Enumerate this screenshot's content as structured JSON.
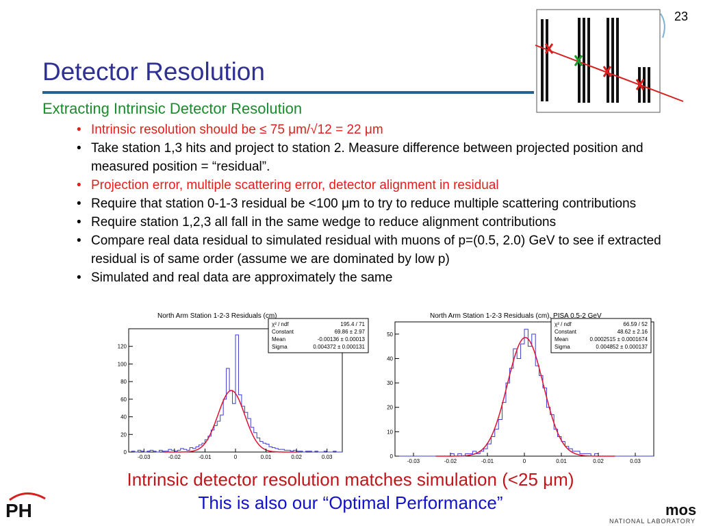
{
  "slide_number": "23",
  "title": "Detector Resolution",
  "subtitle": "Extracting Intrinsic Detector Resolution",
  "bullets": [
    {
      "text": "Intrinsic resolution should be ≤ 75 μm/√12 = 22 μm",
      "color": "#e0201a"
    },
    {
      "text": "Take station 1,3 hits and project to station 2.  Measure difference between projected position and measured position = “residual”.",
      "color": "#000000"
    },
    {
      "text": "Projection error, multiple scattering error, detector alignment in residual",
      "color": "#e0201a"
    },
    {
      "text": "Require that station 0-1-3 residual be <100 μm to try to reduce multiple scattering contributions",
      "color": "#000000"
    },
    {
      "text": "Require station 1,2,3 all fall in the same wedge to reduce alignment contributions",
      "color": "#000000"
    },
    {
      "text": "Compare real data residual to simulated residual with muons of p=(0.5, 2.0) GeV to see if extracted residual is of same order (assume we are dominated by low p)",
      "color": "#000000"
    },
    {
      "text": "Simulated and real data are approximately the same",
      "color": "#000000"
    }
  ],
  "conclusion": {
    "line1": "Intrinsic detector resolution matches simulation (<25 μm)",
    "line2": "This is also our “Optimal Performance”"
  },
  "logos": {
    "left": "PH",
    "right_main": "mos",
    "right_sub": "NATIONAL LABORATORY"
  },
  "chart_data": [
    {
      "type": "bar",
      "title": "North Arm Station 1-2-3 Residuals (cm)",
      "xlim": [
        -0.035,
        0.035
      ],
      "ylim": [
        0,
        140
      ],
      "xticks": [
        "-0.03",
        "-0.02",
        "-0.01",
        "0",
        "0.01",
        "0.02",
        "0.03"
      ],
      "yticks": [
        "0",
        "20",
        "40",
        "60",
        "80",
        "100",
        "120"
      ],
      "stats": [
        {
          "label": "χ² / ndf",
          "value": "195.4 / 71"
        },
        {
          "label": "Constant",
          "value": "69.86 ± 2.97"
        },
        {
          "label": "Mean",
          "value": "-0.00136 ± 0.00013"
        },
        {
          "label": "Sigma",
          "value": "0.004372 ± 0.000131"
        }
      ],
      "fit": {
        "constant": 69.86,
        "mean": -0.00136,
        "sigma": 0.004372
      },
      "bin_width": 0.001,
      "bins_x": [
        -0.035,
        -0.034,
        -0.033,
        -0.032,
        -0.031,
        -0.03,
        -0.029,
        -0.028,
        -0.027,
        -0.026,
        -0.025,
        -0.024,
        -0.023,
        -0.022,
        -0.021,
        -0.02,
        -0.019,
        -0.018,
        -0.017,
        -0.016,
        -0.015,
        -0.014,
        -0.013,
        -0.012,
        -0.011,
        -0.01,
        -0.009,
        -0.008,
        -0.007,
        -0.006,
        -0.005,
        -0.004,
        -0.003,
        -0.002,
        -0.001,
        0.0,
        0.001,
        0.002,
        0.003,
        0.004,
        0.005,
        0.006,
        0.007,
        0.008,
        0.009,
        0.01,
        0.011,
        0.012,
        0.013,
        0.014,
        0.015,
        0.016,
        0.017,
        0.018,
        0.019,
        0.02,
        0.021,
        0.022,
        0.023,
        0.024,
        0.025,
        0.026,
        0.027,
        0.028,
        0.029,
        0.03,
        0.031,
        0.032,
        0.033,
        0.034
      ],
      "bins_y": [
        0,
        1,
        0,
        2,
        1,
        0,
        1,
        2,
        1,
        0,
        2,
        1,
        1,
        3,
        2,
        1,
        2,
        4,
        3,
        2,
        5,
        4,
        6,
        8,
        10,
        14,
        18,
        25,
        30,
        35,
        42,
        60,
        95,
        70,
        55,
        133,
        65,
        52,
        45,
        38,
        28,
        22,
        16,
        12,
        10,
        9,
        6,
        5,
        4,
        3,
        3,
        2,
        2,
        1,
        2,
        1,
        1,
        0,
        1,
        1,
        0,
        1,
        0,
        0,
        1,
        0,
        0,
        1,
        0,
        0
      ]
    },
    {
      "type": "bar",
      "title": "North Arm Station 1-2-3 Residuals (cm), PISA 0.5-2 GeV",
      "xlim": [
        -0.035,
        0.035
      ],
      "ylim": [
        0,
        55
      ],
      "xticks": [
        "-0.03",
        "-0.02",
        "-0.01",
        "0",
        "0.01",
        "0.02",
        "0.03"
      ],
      "yticks": [
        "0",
        "10",
        "20",
        "30",
        "40",
        "50"
      ],
      "stats": [
        {
          "label": "χ² / ndf",
          "value": "66.59 / 52"
        },
        {
          "label": "Constant",
          "value": "48.62 ± 2.16"
        },
        {
          "label": "Mean",
          "value": "0.0002515 ± 0.0001674"
        },
        {
          "label": "Sigma",
          "value": "0.004852 ± 0.000137"
        }
      ],
      "fit": {
        "constant": 48.62,
        "mean": 0.0002515,
        "sigma": 0.004852
      },
      "bin_width": 0.001,
      "bins_x": [
        -0.035,
        -0.034,
        -0.033,
        -0.032,
        -0.031,
        -0.03,
        -0.029,
        -0.028,
        -0.027,
        -0.026,
        -0.025,
        -0.024,
        -0.023,
        -0.022,
        -0.021,
        -0.02,
        -0.019,
        -0.018,
        -0.017,
        -0.016,
        -0.015,
        -0.014,
        -0.013,
        -0.012,
        -0.011,
        -0.01,
        -0.009,
        -0.008,
        -0.007,
        -0.006,
        -0.005,
        -0.004,
        -0.003,
        -0.002,
        -0.001,
        0.0,
        0.001,
        0.002,
        0.003,
        0.004,
        0.005,
        0.006,
        0.007,
        0.008,
        0.009,
        0.01,
        0.011,
        0.012,
        0.013,
        0.014,
        0.015,
        0.016,
        0.017,
        0.018,
        0.019,
        0.02,
        0.021,
        0.022,
        0.023,
        0.024,
        0.025,
        0.026,
        0.027,
        0.028,
        0.029,
        0.03,
        0.031,
        0.032,
        0.033,
        0.034
      ],
      "bins_y": [
        0,
        0,
        0,
        0,
        0,
        0,
        0,
        0,
        0,
        0,
        0,
        0,
        0,
        0,
        0,
        1,
        0,
        1,
        0,
        1,
        1,
        2,
        1,
        2,
        3,
        5,
        8,
        11,
        15,
        22,
        30,
        36,
        44,
        40,
        46,
        52,
        45,
        50,
        37,
        33,
        28,
        20,
        17,
        11,
        8,
        6,
        4,
        3,
        2,
        2,
        1,
        1,
        1,
        0,
        1,
        0,
        0,
        0,
        0,
        0,
        0,
        0,
        0,
        0,
        0,
        0,
        0,
        0,
        0,
        0
      ]
    }
  ]
}
